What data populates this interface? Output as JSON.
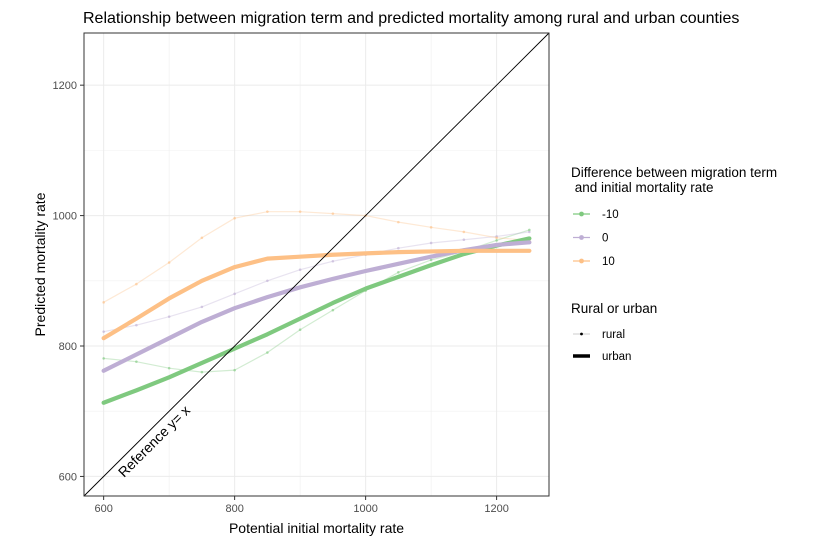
{
  "chart_data": {
    "type": "line",
    "title": "Relationship between migration term and predicted mortality among rural and urban counties",
    "xlabel": "Potential initial mortality rate",
    "ylabel": "Predicted mortality rate",
    "xlim": [
      570,
      1280
    ],
    "ylim": [
      570,
      1280
    ],
    "xticks": [
      600,
      800,
      1000,
      1200
    ],
    "yticks": [
      600,
      800,
      1000,
      1200
    ],
    "grid": true,
    "legend_position": "right",
    "legend_color_title_line1": "Difference between migration term",
    "legend_color_title_line2": " and initial mortality rate",
    "legend_type_title": "Rural or urban",
    "legend_color_items": [
      {
        "label": "-10",
        "color": "#7fc97f"
      },
      {
        "label": "0",
        "color": "#beaed4"
      },
      {
        "label": "10",
        "color": "#fdc086"
      }
    ],
    "legend_type_items": [
      {
        "label": "rural"
      },
      {
        "label": "urban"
      }
    ],
    "reference_line_label": "Reference y= x",
    "x": [
      600,
      650,
      700,
      750,
      800,
      850,
      900,
      950,
      1000,
      1050,
      1100,
      1150,
      1200,
      1250
    ],
    "series": [
      {
        "group": "-10",
        "type": "urban",
        "color": "#7fc97f",
        "values": [
          713,
          732,
          752,
          774,
          796,
          818,
          842,
          866,
          888,
          906,
          924,
          941,
          954,
          965
        ]
      },
      {
        "group": "0",
        "type": "urban",
        "color": "#beaed4",
        "values": [
          762,
          787,
          812,
          837,
          858,
          875,
          890,
          903,
          915,
          926,
          937,
          947,
          955,
          959
        ]
      },
      {
        "group": "10",
        "type": "urban",
        "color": "#fdc086",
        "values": [
          812,
          842,
          873,
          900,
          921,
          934,
          937,
          940,
          942,
          944,
          945,
          946,
          946,
          946
        ]
      },
      {
        "group": "-10",
        "type": "rural",
        "color": "#7fc97f",
        "values": [
          781,
          776,
          766,
          760,
          763,
          790,
          825,
          855,
          885,
          913,
          932,
          945,
          962,
          978
        ]
      },
      {
        "group": "0",
        "type": "rural",
        "color": "#beaed4",
        "values": [
          822,
          832,
          845,
          860,
          880,
          900,
          917,
          930,
          940,
          950,
          958,
          963,
          968,
          975
        ]
      },
      {
        "group": "10",
        "type": "rural",
        "color": "#fdc086",
        "values": [
          867,
          895,
          928,
          966,
          996,
          1006,
          1006,
          1003,
          1000,
          990,
          982,
          975,
          966,
          962
        ]
      }
    ]
  }
}
